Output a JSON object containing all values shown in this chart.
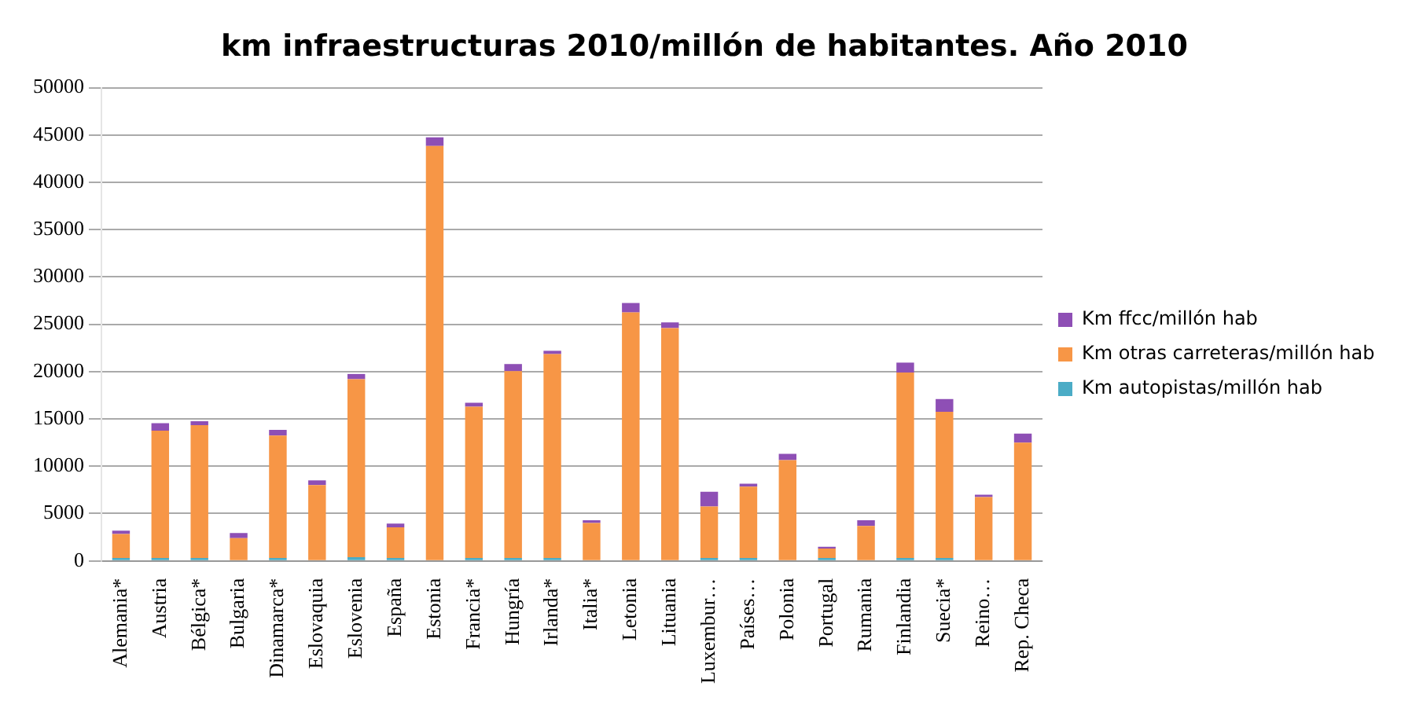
{
  "chart_data": {
    "type": "bar",
    "title": "km infraestructuras 2010/millón de habitantes. Año 2010",
    "stacked": true,
    "legend": "right",
    "grid": "y",
    "categories": [
      "Alemania*",
      "Austria",
      "Bélgica*",
      "Bulgaria",
      "Dinamarca*",
      "Eslovaquia",
      "Eslovenia",
      "España",
      "Estonia",
      "Francia*",
      "Hungría",
      "Irlanda*",
      "Italia*",
      "Letonia",
      "Lituania",
      "Luxembur…",
      "Países…",
      "Polonia",
      "Portugal",
      "Rumania",
      "Finlandia",
      "Suecia*",
      "Reino…",
      "Rep. Checa"
    ],
    "ylim": [
      0,
      50000
    ],
    "yticks": [
      0,
      5000,
      10000,
      15000,
      20000,
      25000,
      30000,
      35000,
      40000,
      45000,
      50000
    ],
    "series": [
      {
        "name": "Km autopistas/millón hab",
        "color": "#4bacc6",
        "values": [
          300,
          300,
          300,
          0,
          300,
          0,
          400,
          300,
          0,
          300,
          300,
          300,
          0,
          0,
          0,
          300,
          300,
          0,
          300,
          0,
          300,
          300,
          0,
          0
        ]
      },
      {
        "name": "Km otras carreteras/millón hab",
        "color": "#f79646",
        "values": [
          2550,
          13450,
          14050,
          2400,
          12950,
          8000,
          18800,
          3250,
          43850,
          16000,
          19750,
          21550,
          4000,
          26250,
          24600,
          5450,
          7550,
          10650,
          1000,
          3700,
          19600,
          15450,
          6750,
          12500
        ]
      },
      {
        "name": "Km ffcc/millón hab",
        "color": "#8e4fb5",
        "values": [
          350,
          800,
          400,
          550,
          600,
          500,
          550,
          400,
          900,
          400,
          750,
          350,
          300,
          1000,
          600,
          1550,
          300,
          650,
          200,
          600,
          1050,
          1350,
          250,
          950
        ]
      }
    ]
  }
}
